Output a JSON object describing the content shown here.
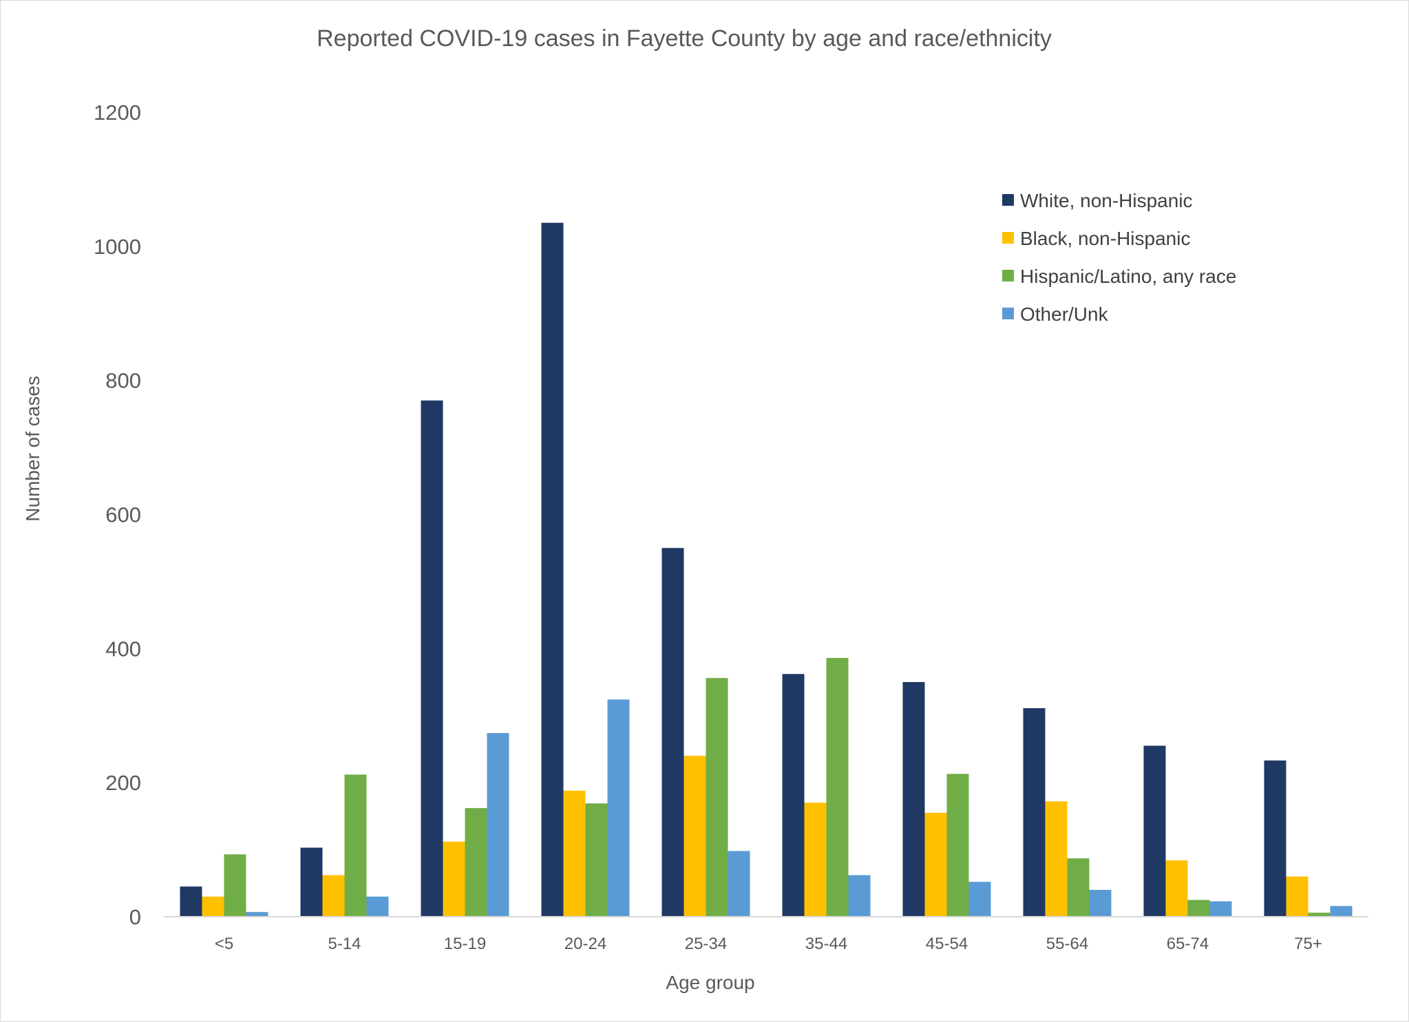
{
  "chart_data": {
    "type": "bar",
    "title": "Reported COVID-19 cases in Fayette County by age and race/ethnicity",
    "xlabel": "Age group",
    "ylabel": "Number of cases",
    "ylim": [
      0,
      1200
    ],
    "yticks": [
      0,
      200,
      400,
      600,
      800,
      1000,
      1200
    ],
    "grid": false,
    "legend_position": "top-right",
    "categories": [
      "<5",
      "5-14",
      "15-19",
      "20-24",
      "25-34",
      "35-44",
      "45-54",
      "55-64",
      "65-74",
      "75+"
    ],
    "series": [
      {
        "name": "White, non-Hispanic",
        "color": "#203864",
        "values": [
          45,
          103,
          770,
          1035,
          550,
          362,
          350,
          311,
          255,
          233
        ]
      },
      {
        "name": "Black, non-Hispanic",
        "color": "#FFC000",
        "values": [
          30,
          62,
          112,
          188,
          240,
          170,
          155,
          172,
          84,
          60
        ]
      },
      {
        "name": "Hispanic/Latino, any race",
        "color": "#70AD47",
        "values": [
          93,
          212,
          162,
          169,
          356,
          386,
          213,
          87,
          25,
          6
        ]
      },
      {
        "name": "Other/Unk",
        "color": "#5B9BD5",
        "values": [
          7,
          30,
          274,
          324,
          98,
          62,
          52,
          40,
          23,
          16
        ]
      }
    ]
  }
}
